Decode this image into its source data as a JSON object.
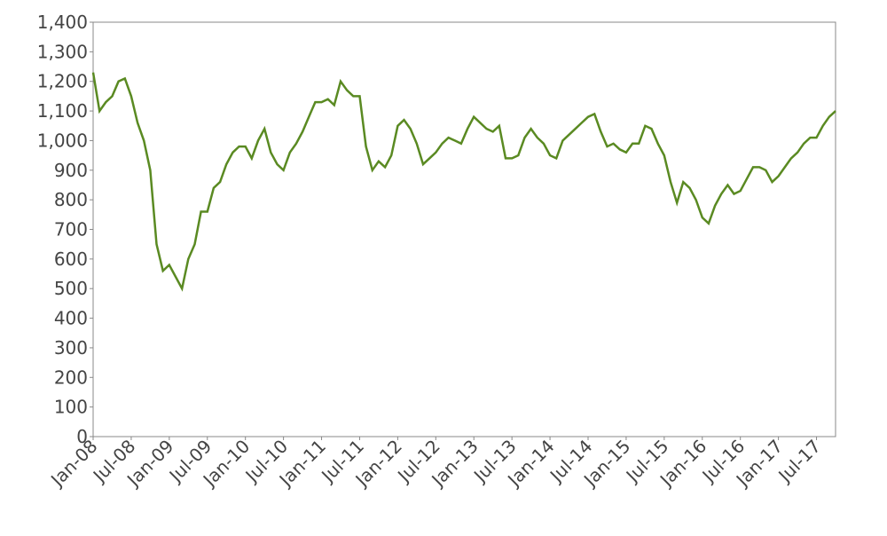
{
  "chart_data": {
    "type": "line",
    "x": [
      "2008-01",
      "2008-02",
      "2008-03",
      "2008-04",
      "2008-05",
      "2008-06",
      "2008-07",
      "2008-08",
      "2008-09",
      "2008-10",
      "2008-11",
      "2008-12",
      "2009-01",
      "2009-02",
      "2009-03",
      "2009-04",
      "2009-05",
      "2009-06",
      "2009-07",
      "2009-08",
      "2009-09",
      "2009-10",
      "2009-11",
      "2009-12",
      "2010-01",
      "2010-02",
      "2010-03",
      "2010-04",
      "2010-05",
      "2010-06",
      "2010-07",
      "2010-08",
      "2010-09",
      "2010-10",
      "2010-11",
      "2010-12",
      "2011-01",
      "2011-02",
      "2011-03",
      "2011-04",
      "2011-05",
      "2011-06",
      "2011-07",
      "2011-08",
      "2011-09",
      "2011-10",
      "2011-11",
      "2011-12",
      "2012-01",
      "2012-02",
      "2012-03",
      "2012-04",
      "2012-05",
      "2012-06",
      "2012-07",
      "2012-08",
      "2012-09",
      "2012-10",
      "2012-11",
      "2012-12",
      "2013-01",
      "2013-02",
      "2013-03",
      "2013-04",
      "2013-05",
      "2013-06",
      "2013-07",
      "2013-08",
      "2013-09",
      "2013-10",
      "2013-11",
      "2013-12",
      "2014-01",
      "2014-02",
      "2014-03",
      "2014-04",
      "2014-05",
      "2014-06",
      "2014-07",
      "2014-08",
      "2014-09",
      "2014-10",
      "2014-11",
      "2014-12",
      "2015-01",
      "2015-02",
      "2015-03",
      "2015-04",
      "2015-05",
      "2015-06",
      "2015-07",
      "2015-08",
      "2015-09",
      "2015-10",
      "2015-11",
      "2015-12",
      "2016-01",
      "2016-02",
      "2016-03",
      "2016-04",
      "2016-05",
      "2016-06",
      "2016-07",
      "2016-08",
      "2016-09",
      "2016-10",
      "2016-11",
      "2016-12",
      "2017-01",
      "2017-02",
      "2017-03",
      "2017-04",
      "2017-05",
      "2017-06",
      "2017-07",
      "2017-08",
      "2017-09",
      "2017-10"
    ],
    "series": [
      {
        "color": "#5a8a22",
        "values": [
          1230,
          1100,
          1130,
          1150,
          1200,
          1210,
          1150,
          1060,
          1000,
          900,
          650,
          560,
          580,
          540,
          500,
          600,
          650,
          760,
          760,
          840,
          860,
          920,
          960,
          980,
          980,
          940,
          1000,
          1040,
          960,
          920,
          900,
          960,
          990,
          1030,
          1080,
          1130,
          1130,
          1140,
          1120,
          1200,
          1170,
          1150,
          1150,
          980,
          900,
          930,
          910,
          950,
          1050,
          1070,
          1040,
          990,
          920,
          940,
          960,
          990,
          1010,
          1000,
          990,
          1040,
          1080,
          1060,
          1040,
          1030,
          1050,
          940,
          940,
          950,
          1010,
          1040,
          1010,
          990,
          950,
          940,
          1000,
          1020,
          1040,
          1060,
          1080,
          1090,
          1030,
          980,
          990,
          970,
          960,
          990,
          990,
          1050,
          1040,
          990,
          950,
          860,
          790,
          860,
          840,
          800,
          740,
          720,
          780,
          820,
          850,
          820,
          830,
          870,
          910,
          910,
          900,
          860,
          880,
          910,
          940,
          960,
          990,
          1010,
          1010,
          1050,
          1080,
          1100
        ]
      }
    ],
    "xlim": [
      "2008-01",
      "2017-10"
    ],
    "xticks": [
      {
        "value": "2008-01",
        "label": "Jan-08"
      },
      {
        "value": "2008-07",
        "label": "Jul-08"
      },
      {
        "value": "2009-01",
        "label": "Jan-09"
      },
      {
        "value": "2009-07",
        "label": "Jul-09"
      },
      {
        "value": "2010-01",
        "label": "Jan-10"
      },
      {
        "value": "2010-07",
        "label": "Jul-10"
      },
      {
        "value": "2011-01",
        "label": "Jan-11"
      },
      {
        "value": "2011-07",
        "label": "Jul-11"
      },
      {
        "value": "2012-01",
        "label": "Jan-12"
      },
      {
        "value": "2012-07",
        "label": "Jul-12"
      },
      {
        "value": "2013-01",
        "label": "Jan-13"
      },
      {
        "value": "2013-07",
        "label": "Jul-13"
      },
      {
        "value": "2014-01",
        "label": "Jan-14"
      },
      {
        "value": "2014-07",
        "label": "Jul-14"
      },
      {
        "value": "2015-01",
        "label": "Jan-15"
      },
      {
        "value": "2015-07",
        "label": "Jul-15"
      },
      {
        "value": "2016-01",
        "label": "Jan-16"
      },
      {
        "value": "2016-07",
        "label": "Jul-16"
      },
      {
        "value": "2017-01",
        "label": "Jan-17"
      },
      {
        "value": "2017-07",
        "label": "Jul-17"
      }
    ],
    "ylim": [
      0,
      1400
    ],
    "yticks": [
      0,
      100,
      200,
      300,
      400,
      500,
      600,
      700,
      800,
      900,
      {
        "value": 1000,
        "label": "1,000"
      },
      {
        "value": 1100,
        "label": "1,100"
      },
      {
        "value": 1200,
        "label": "1,200"
      },
      {
        "value": 1300,
        "label": "1,300"
      },
      {
        "value": 1400,
        "label": "1,400"
      }
    ]
  }
}
